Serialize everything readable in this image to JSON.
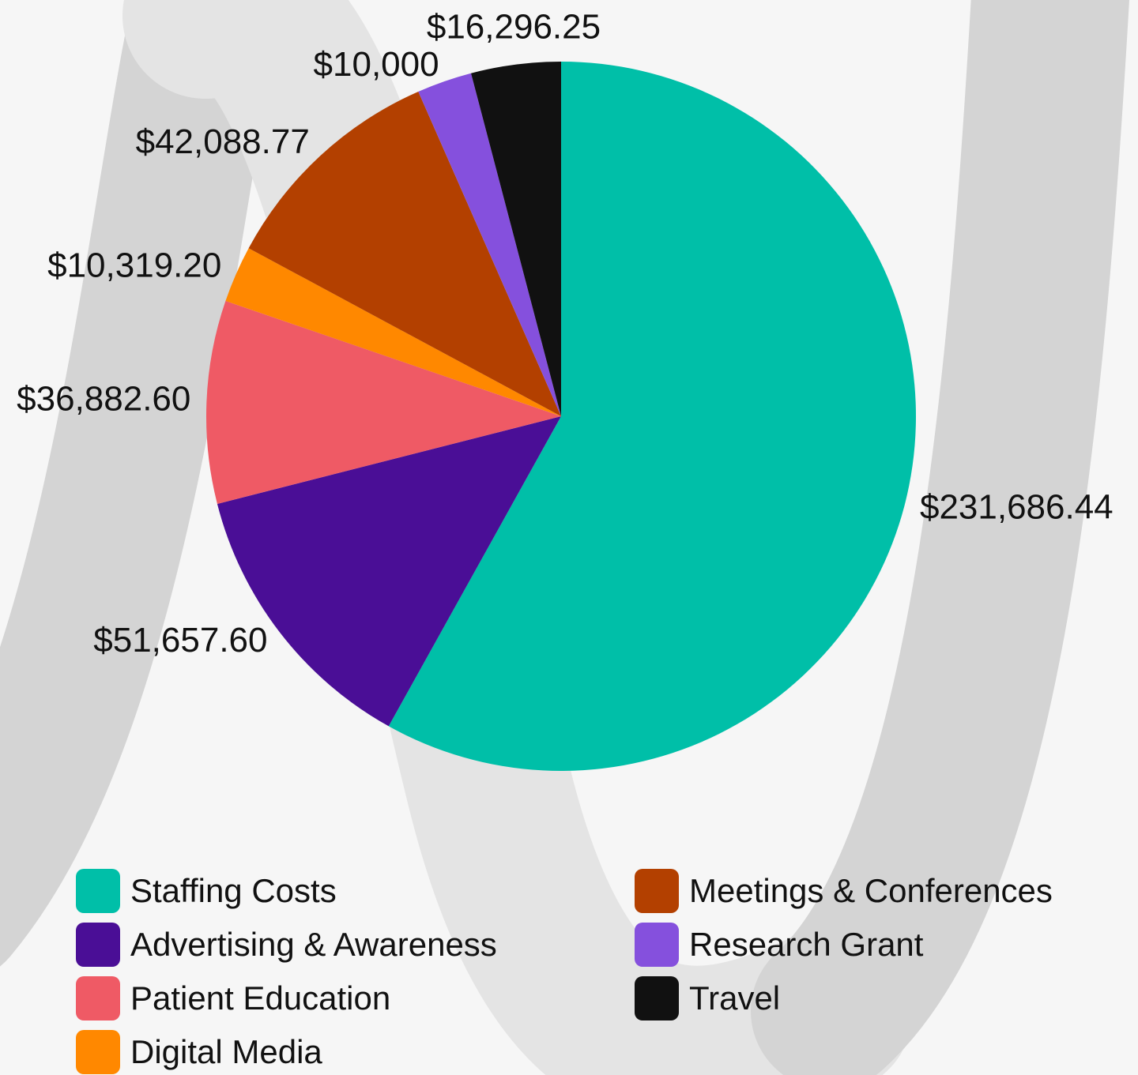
{
  "chart_data": {
    "type": "pie",
    "categories": [
      "Staffing Costs",
      "Advertising & Awareness",
      "Patient Education",
      "Digital Media",
      "Meetings & Conferences",
      "Research Grant",
      "Travel"
    ],
    "values": [
      231686.44,
      51657.6,
      36882.6,
      10319.2,
      42088.77,
      10000,
      16296.25
    ],
    "value_labels": [
      "$231,686.44",
      "$51,657.60",
      "$36,882.60",
      "$10,319.20",
      "$42,088.77",
      "$10,000",
      "$16,296.25"
    ],
    "colors": [
      "#00bfa8",
      "#4a0e96",
      "#ef5a65",
      "#ff8800",
      "#b34000",
      "#8550dd",
      "#111111"
    ]
  }
}
